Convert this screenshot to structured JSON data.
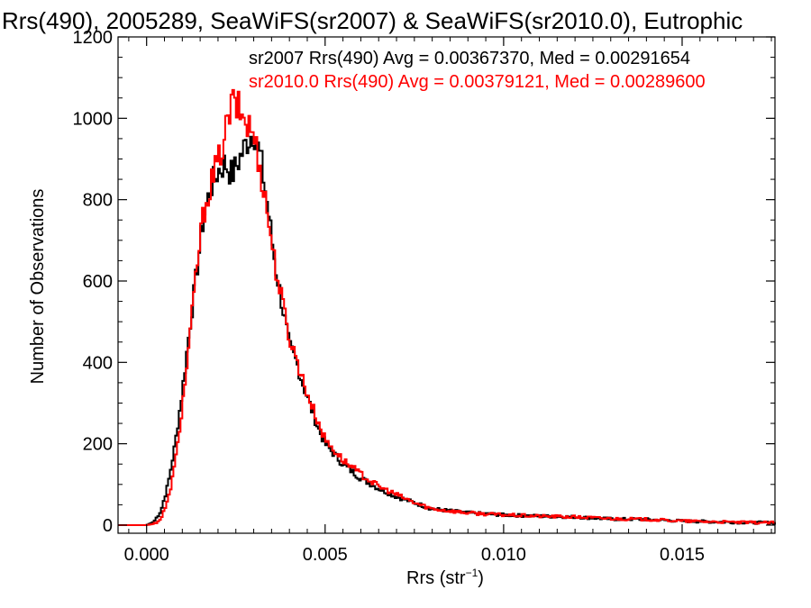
{
  "chart_data": {
    "type": "line",
    "title": "Rrs(490), 2005289, SeaWiFS(sr2007) & SeaWiFS(sr2010.0), Eutrophic",
    "xlabel": "Rrs (str",
    "xlabel_sup": "−1",
    "xlabel_close": ")",
    "ylabel": "Number of Observations",
    "xlim": [
      -0.0008,
      0.0176
    ],
    "ylim": [
      -20,
      1200
    ],
    "x_ticks": [
      0.0,
      0.005,
      0.01,
      0.015
    ],
    "x_tick_labels": [
      "0.000",
      "0.005",
      "0.010",
      "0.015"
    ],
    "y_ticks": [
      0,
      200,
      400,
      600,
      800,
      1000,
      1200
    ],
    "y_tick_labels": [
      "0",
      "200",
      "400",
      "600",
      "800",
      "1000",
      "1200"
    ],
    "step": "histogram",
    "annotations": [
      "sr2007 Rrs(490) Avg = 0.00367370, Med = 0.00291654",
      "sr2010.0 Rrs(490) Avg = 0.00379121, Med = 0.00289600"
    ],
    "series": [
      {
        "color": "#000000",
        "points": [
          [
            -0.0008,
            0
          ],
          [
            0.0,
            0
          ],
          [
            0.0002,
            8
          ],
          [
            0.0004,
            35
          ],
          [
            0.0006,
            100
          ],
          [
            0.0008,
            200
          ],
          [
            0.001,
            330
          ],
          [
            0.0012,
            480
          ],
          [
            0.0014,
            620
          ],
          [
            0.0016,
            760
          ],
          [
            0.0018,
            830
          ],
          [
            0.002,
            870
          ],
          [
            0.0022,
            890
          ],
          [
            0.0024,
            860
          ],
          [
            0.0026,
            900
          ],
          [
            0.0028,
            940
          ],
          [
            0.003,
            970
          ],
          [
            0.0032,
            900
          ],
          [
            0.0034,
            780
          ],
          [
            0.0036,
            640
          ],
          [
            0.0038,
            540
          ],
          [
            0.004,
            440
          ],
          [
            0.0042,
            400
          ],
          [
            0.0044,
            340
          ],
          [
            0.0046,
            290
          ],
          [
            0.0048,
            240
          ],
          [
            0.005,
            200
          ],
          [
            0.0055,
            150
          ],
          [
            0.006,
            115
          ],
          [
            0.0065,
            90
          ],
          [
            0.007,
            70
          ],
          [
            0.0075,
            55
          ],
          [
            0.008,
            40
          ],
          [
            0.009,
            30
          ],
          [
            0.01,
            25
          ],
          [
            0.011,
            22
          ],
          [
            0.012,
            20
          ],
          [
            0.013,
            15
          ],
          [
            0.014,
            14
          ],
          [
            0.015,
            10
          ],
          [
            0.016,
            8
          ],
          [
            0.017,
            6
          ],
          [
            0.0176,
            6
          ]
        ]
      },
      {
        "color": "#ff0000",
        "points": [
          [
            -0.0008,
            0
          ],
          [
            0.0,
            0
          ],
          [
            0.0002,
            3
          ],
          [
            0.0004,
            15
          ],
          [
            0.0006,
            60
          ],
          [
            0.0008,
            150
          ],
          [
            0.001,
            290
          ],
          [
            0.0012,
            450
          ],
          [
            0.0014,
            630
          ],
          [
            0.0016,
            770
          ],
          [
            0.0018,
            840
          ],
          [
            0.002,
            890
          ],
          [
            0.0022,
            960
          ],
          [
            0.0024,
            1040
          ],
          [
            0.0026,
            1020
          ],
          [
            0.0028,
            990
          ],
          [
            0.003,
            960
          ],
          [
            0.0032,
            870
          ],
          [
            0.0034,
            760
          ],
          [
            0.0036,
            640
          ],
          [
            0.0038,
            550
          ],
          [
            0.004,
            460
          ],
          [
            0.0042,
            410
          ],
          [
            0.0044,
            350
          ],
          [
            0.0046,
            300
          ],
          [
            0.0048,
            255
          ],
          [
            0.005,
            210
          ],
          [
            0.0055,
            160
          ],
          [
            0.006,
            125
          ],
          [
            0.0065,
            95
          ],
          [
            0.007,
            75
          ],
          [
            0.0075,
            55
          ],
          [
            0.008,
            40
          ],
          [
            0.009,
            30
          ],
          [
            0.01,
            25
          ],
          [
            0.011,
            22
          ],
          [
            0.012,
            20
          ],
          [
            0.013,
            16
          ],
          [
            0.014,
            14
          ],
          [
            0.015,
            10
          ],
          [
            0.016,
            8
          ],
          [
            0.017,
            6
          ],
          [
            0.0176,
            6
          ]
        ]
      }
    ]
  }
}
